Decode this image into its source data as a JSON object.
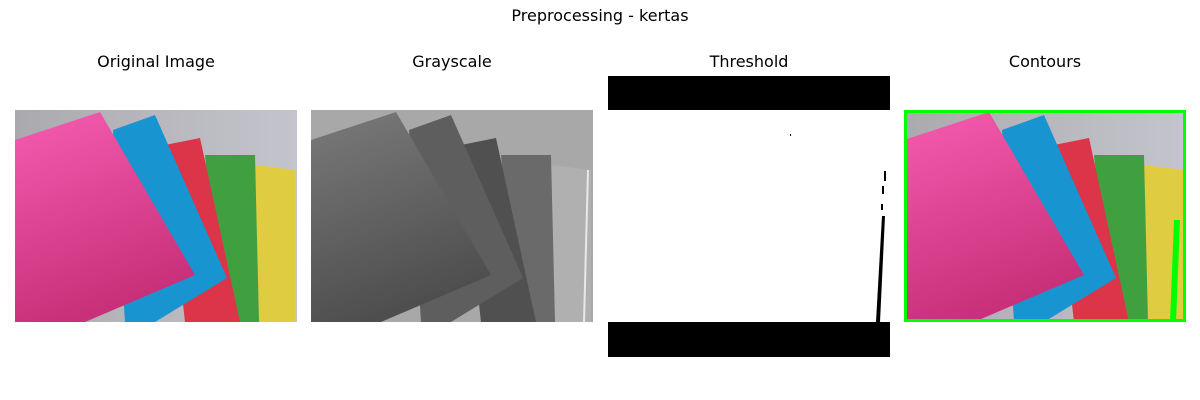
{
  "figure": {
    "title": "Preprocessing - kertas"
  },
  "panels": [
    {
      "title": "Original Image"
    },
    {
      "title": "Grayscale"
    },
    {
      "title": "Threshold"
    },
    {
      "title": "Contours"
    }
  ],
  "colors": {
    "background_gray": "#b6b6bd",
    "pink_paper": "#f050a8",
    "blue_paper": "#1894d0",
    "red_paper": "#dc3448",
    "green_paper": "#40a040",
    "yellow_paper": "#e0cc40",
    "contour_green": "#00ff00"
  }
}
